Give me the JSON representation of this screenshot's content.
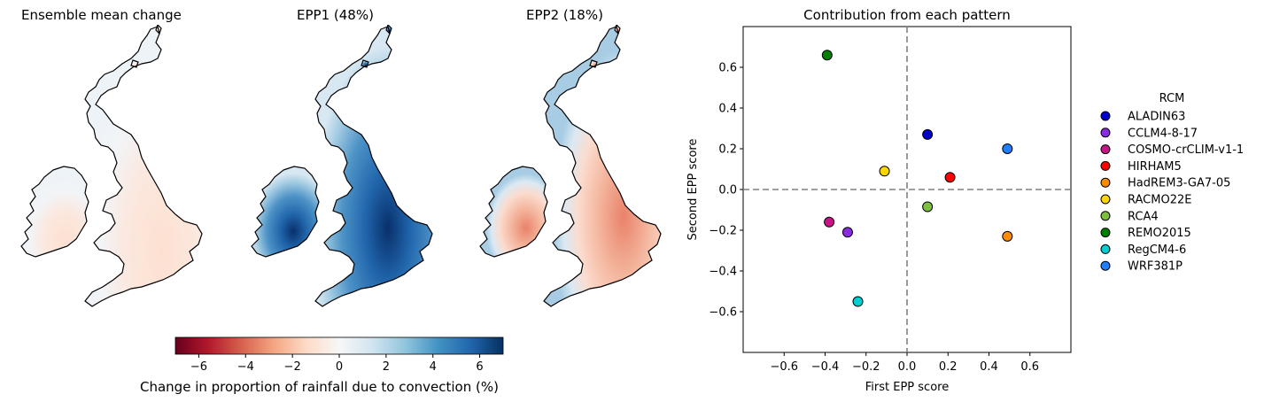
{
  "maps": [
    {
      "title": "Ensemble mean change",
      "fill": "mean"
    },
    {
      "title": "EPP1 (48%)",
      "fill": "epp1"
    },
    {
      "title": "EPP2 (18%)",
      "fill": "epp2"
    }
  ],
  "colorbar": {
    "label": "Change in proportion of rainfall due to convection (%)",
    "range": [
      -7,
      7
    ],
    "ticks": [
      -6,
      -4,
      -2,
      0,
      2,
      4,
      6
    ],
    "tick_labels": [
      "−6",
      "−4",
      "−2",
      "0",
      "2",
      "4",
      "6"
    ],
    "colors": [
      "#67001f",
      "#b2182b",
      "#d6604d",
      "#f4a582",
      "#fddbc7",
      "#f7f7f7",
      "#d1e5f0",
      "#92c5de",
      "#4393c3",
      "#2166ac",
      "#053061"
    ]
  },
  "chart_data": {
    "type": "scatter",
    "title": "Contribution from each pattern",
    "xlabel": "First EPP score",
    "ylabel": "Second EPP score",
    "xlim": [
      -0.8,
      0.8
    ],
    "ylim": [
      -0.8,
      0.8
    ],
    "x_ticks": [
      -0.6,
      -0.4,
      -0.2,
      0.0,
      0.2,
      0.4,
      0.6
    ],
    "x_tick_labels": [
      "−0.6",
      "−0.4",
      "−0.2",
      "0.0",
      "0.2",
      "0.4",
      "0.6"
    ],
    "y_ticks": [
      -0.6,
      -0.4,
      -0.2,
      0.0,
      0.2,
      0.4,
      0.6
    ],
    "y_tick_labels": [
      "−0.6",
      "−0.4",
      "−0.2",
      "0.0",
      "0.2",
      "0.4",
      "0.6"
    ],
    "reference_lines": {
      "x": 0,
      "y": 0,
      "style": "dashed"
    },
    "grid": false,
    "legend_title": "RCM",
    "legend_placement": "right",
    "series": [
      {
        "name": "ALADIN63",
        "color": "#0000cc",
        "x": 0.1,
        "y": 0.27
      },
      {
        "name": "CCLM4-8-17",
        "color": "#8a2be2",
        "x": -0.29,
        "y": -0.21
      },
      {
        "name": "COSMO-crCLIM-v1-1",
        "color": "#c71585",
        "x": -0.38,
        "y": -0.16
      },
      {
        "name": "HIRHAM5",
        "color": "#ff0000",
        "x": 0.21,
        "y": 0.06
      },
      {
        "name": "HadREM3-GA7-05",
        "color": "#ff8c00",
        "x": 0.49,
        "y": -0.23
      },
      {
        "name": "RACMO22E",
        "color": "#ffd700",
        "x": -0.11,
        "y": 0.09
      },
      {
        "name": "RCA4",
        "color": "#7fbf3f",
        "x": 0.1,
        "y": -0.085
      },
      {
        "name": "REMO2015",
        "color": "#008000",
        "x": -0.39,
        "y": 0.66
      },
      {
        "name": "RegCM4-6",
        "color": "#00ced1",
        "x": -0.24,
        "y": -0.55
      },
      {
        "name": "WRF381P",
        "color": "#1e7fff",
        "x": 0.49,
        "y": 0.2
      }
    ]
  }
}
